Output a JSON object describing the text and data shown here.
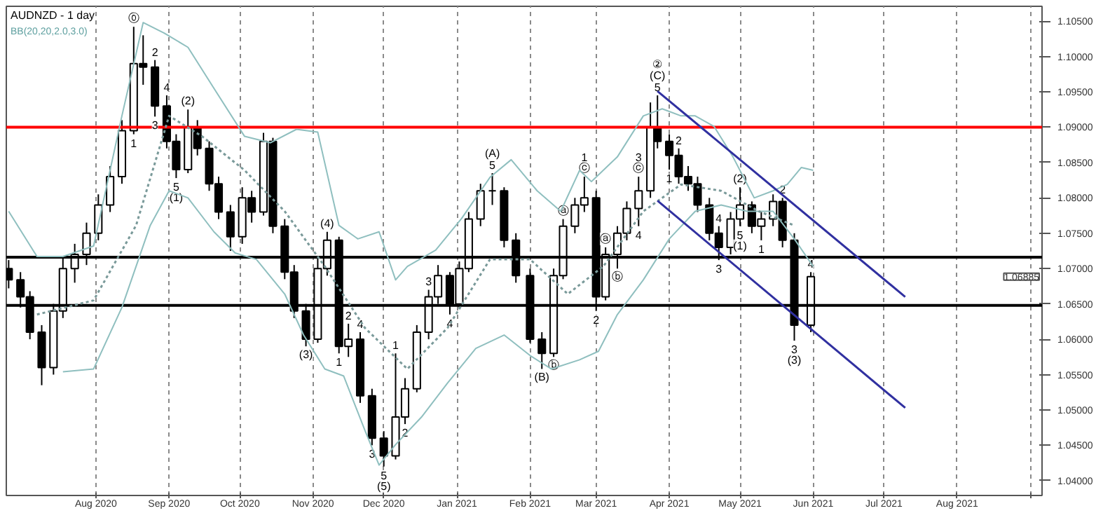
{
  "chart_data": {
    "type": "candlestick",
    "title": "AUDNZD - 1 day",
    "subtitle": "BB(20,20,2.0,3.0)",
    "color": "#000000",
    "x": [
      "2020-06-25",
      "2020-06-30",
      "2020-07-04",
      "2020-07-09",
      "2020-07-14",
      "2020-07-18",
      "2020-07-23",
      "2020-07-28",
      "2020-08-02",
      "2020-08-07",
      "2020-08-12",
      "2020-08-17",
      "2020-08-21",
      "2020-08-26",
      "2020-08-31",
      "2020-09-04",
      "2020-09-09",
      "2020-09-13",
      "2020-09-18",
      "2020-09-22",
      "2020-09-27",
      "2020-10-02",
      "2020-10-06",
      "2020-10-11",
      "2020-10-15",
      "2020-10-20",
      "2020-10-24",
      "2020-10-29",
      "2020-11-03",
      "2020-11-07",
      "2020-11-12",
      "2020-11-16",
      "2020-11-21",
      "2020-11-26",
      "2020-12-01",
      "2020-12-06",
      "2020-12-10",
      "2020-12-15",
      "2020-12-20",
      "2020-12-24",
      "2020-12-29",
      "2021-01-02",
      "2021-01-06",
      "2021-01-11",
      "2021-01-16",
      "2021-01-21",
      "2021-01-26",
      "2021-02-01",
      "2021-02-06",
      "2021-02-11",
      "2021-02-15",
      "2021-02-20",
      "2021-02-24",
      "2021-03-01",
      "2021-03-05",
      "2021-03-10",
      "2021-03-14",
      "2021-03-19",
      "2021-03-24",
      "2021-03-27",
      "2021-04-01",
      "2021-04-05",
      "2021-04-09",
      "2021-04-13",
      "2021-04-18",
      "2021-04-22",
      "2021-04-27",
      "2021-05-01",
      "2021-05-06",
      "2021-05-10",
      "2021-05-15",
      "2021-05-19",
      "2021-05-24",
      "2021-05-31"
    ],
    "ohlc": [
      [
        1.07,
        1.0712,
        1.0672,
        1.0684
      ],
      [
        1.0684,
        1.0695,
        1.0645,
        1.066
      ],
      [
        1.066,
        1.0668,
        1.06,
        1.061
      ],
      [
        1.061,
        1.062,
        1.0535,
        1.056
      ],
      [
        1.056,
        1.065,
        1.055,
        1.064
      ],
      [
        1.064,
        1.0715,
        1.063,
        1.07
      ],
      [
        1.07,
        1.0735,
        1.068,
        1.072
      ],
      [
        1.072,
        1.0765,
        1.0705,
        1.075
      ],
      [
        1.075,
        1.0805,
        1.074,
        1.079
      ],
      [
        1.079,
        1.0845,
        1.078,
        1.083
      ],
      [
        1.083,
        1.091,
        1.082,
        1.0895
      ],
      [
        1.0895,
        1.1042,
        1.089,
        1.099
      ],
      [
        1.099,
        1.103,
        1.096,
        1.0985
      ],
      [
        1.0985,
        1.0995,
        1.0915,
        1.093
      ],
      [
        1.093,
        1.0945,
        1.087,
        1.088
      ],
      [
        1.088,
        1.089,
        1.0828,
        1.084
      ],
      [
        1.084,
        1.0925,
        1.0835,
        1.09
      ],
      [
        1.09,
        1.091,
        1.086,
        1.087
      ],
      [
        1.087,
        1.088,
        1.081,
        1.082
      ],
      [
        1.082,
        1.083,
        1.077,
        1.078
      ],
      [
        1.078,
        1.079,
        1.0725,
        1.0745
      ],
      [
        1.0745,
        1.0815,
        1.0735,
        1.08
      ],
      [
        1.08,
        1.081,
        1.0765,
        1.078
      ],
      [
        1.078,
        1.0892,
        1.0775,
        1.088
      ],
      [
        1.088,
        1.0885,
        1.075,
        1.076
      ],
      [
        1.076,
        1.077,
        1.0685,
        1.0695
      ],
      [
        1.0695,
        1.0705,
        1.063,
        1.064
      ],
      [
        1.064,
        1.065,
        1.059,
        1.06
      ],
      [
        1.06,
        1.0715,
        1.0595,
        1.07
      ],
      [
        1.07,
        1.0752,
        1.069,
        1.074
      ],
      [
        1.074,
        1.0745,
        1.058,
        1.059
      ],
      [
        1.059,
        1.0622,
        1.0575,
        1.06
      ],
      [
        1.06,
        1.061,
        1.051,
        1.052
      ],
      [
        1.052,
        1.053,
        1.045,
        1.046
      ],
      [
        1.046,
        1.047,
        1.042,
        1.0435
      ],
      [
        1.0435,
        1.058,
        1.043,
        1.049
      ],
      [
        1.049,
        1.0545,
        1.048,
        1.053
      ],
      [
        1.053,
        1.062,
        1.0525,
        1.061
      ],
      [
        1.061,
        1.067,
        1.06,
        1.066
      ],
      [
        1.066,
        1.0705,
        1.065,
        1.069
      ],
      [
        1.069,
        1.0695,
        1.0635,
        1.065
      ],
      [
        1.065,
        1.071,
        1.0645,
        1.07
      ],
      [
        1.07,
        1.078,
        1.0695,
        1.077
      ],
      [
        1.077,
        1.082,
        1.076,
        1.081
      ],
      [
        1.081,
        1.0835,
        1.079,
        1.081
      ],
      [
        1.081,
        1.0815,
        1.073,
        1.074
      ],
      [
        1.074,
        1.075,
        1.068,
        1.069
      ],
      [
        1.069,
        1.07,
        1.0595,
        1.06
      ],
      [
        1.06,
        1.061,
        1.0558,
        1.058
      ],
      [
        1.058,
        1.07,
        1.0575,
        1.069
      ],
      [
        1.069,
        1.077,
        1.0685,
        1.076
      ],
      [
        1.076,
        1.08,
        1.075,
        1.079
      ],
      [
        1.079,
        1.083,
        1.078,
        1.08
      ],
      [
        1.08,
        1.081,
        1.064,
        1.066
      ],
      [
        1.066,
        1.073,
        1.0655,
        1.072
      ],
      [
        1.072,
        1.076,
        1.07,
        1.075
      ],
      [
        1.075,
        1.0795,
        1.074,
        1.0785
      ],
      [
        1.0785,
        1.083,
        1.076,
        1.081
      ],
      [
        1.081,
        1.0935,
        1.08,
        1.09
      ],
      [
        1.09,
        1.0945,
        1.087,
        1.088
      ],
      [
        1.088,
        1.089,
        1.084,
        1.086
      ],
      [
        1.086,
        1.087,
        1.082,
        1.083
      ],
      [
        1.083,
        1.0845,
        1.081,
        1.082
      ],
      [
        1.082,
        1.083,
        1.078,
        1.079
      ],
      [
        1.079,
        1.08,
        1.074,
        1.075
      ],
      [
        1.075,
        1.076,
        1.0712,
        1.073
      ],
      [
        1.073,
        1.078,
        1.072,
        1.077
      ],
      [
        1.077,
        1.0815,
        1.076,
        1.079
      ],
      [
        1.079,
        1.0795,
        1.075,
        1.076
      ],
      [
        1.076,
        1.078,
        1.074,
        1.077
      ],
      [
        1.077,
        1.0805,
        1.076,
        1.0795
      ],
      [
        1.0795,
        1.08,
        1.073,
        1.074
      ],
      [
        1.074,
        1.075,
        1.0598,
        1.062
      ],
      [
        1.062,
        1.0695,
        1.061,
        1.06885
      ]
    ],
    "series": [
      {
        "type": "line",
        "color": "#8fbfbf",
        "x": [
          "2020-06-25",
          "2020-07-07",
          "2020-07-18",
          "2020-07-31",
          "2020-08-12",
          "2020-08-21",
          "2020-08-30",
          "2020-09-09",
          "2020-09-20",
          "2020-10-03",
          "2020-10-14",
          "2020-10-25",
          "2020-11-03",
          "2020-11-12",
          "2020-11-20",
          "2020-11-29",
          "2020-12-06",
          "2020-12-11",
          "2020-12-23",
          "2021-01-03",
          "2021-01-15",
          "2021-01-24",
          "2021-02-04",
          "2021-02-14",
          "2021-02-22",
          "2021-02-27",
          "2021-03-10",
          "2021-03-21",
          "2021-03-29",
          "2021-04-06",
          "2021-04-12",
          "2021-04-20",
          "2021-04-28",
          "2021-05-07",
          "2021-05-15",
          "2021-05-21",
          "2021-05-27",
          "2021-06-01"
        ],
        "values": [
          1.0781,
          1.0717,
          1.0717,
          1.0732,
          1.0916,
          1.1048,
          1.1033,
          1.1013,
          1.0955,
          1.0887,
          1.0878,
          1.0897,
          1.0893,
          1.0761,
          1.0742,
          1.0752,
          1.0684,
          1.0703,
          1.0726,
          1.0771,
          1.0829,
          1.0854,
          1.081,
          1.0781,
          1.0839,
          1.0823,
          1.0858,
          1.0916,
          1.0926,
          1.0916,
          1.0916,
          1.0901,
          1.0858,
          1.08,
          1.081,
          1.0819,
          1.0843,
          1.0839
        ]
      },
      {
        "type": "line",
        "color": "#8fbfbf",
        "x": [
          "2020-07-18",
          "2020-07-31",
          "2020-08-12",
          "2020-08-24",
          "2020-09-01",
          "2020-09-09",
          "2020-09-20",
          "2020-09-29",
          "2020-10-08",
          "2020-10-20",
          "2020-10-28",
          "2020-11-06",
          "2020-11-14",
          "2020-11-23",
          "2020-11-29",
          "2020-12-06",
          "2020-12-17",
          "2020-12-28",
          "2021-01-09",
          "2021-01-21",
          "2021-02-01",
          "2021-02-10",
          "2021-02-22",
          "2021-03-02",
          "2021-03-10",
          "2021-03-21",
          "2021-04-01",
          "2021-04-12",
          "2021-04-23",
          "2021-05-04",
          "2021-05-15",
          "2021-05-24",
          "2021-06-01"
        ],
        "values": [
          1.0554,
          1.0558,
          1.0645,
          1.0761,
          1.081,
          1.08,
          1.0752,
          1.0722,
          1.0713,
          1.0664,
          1.0606,
          1.0558,
          1.0548,
          1.0471,
          1.0422,
          1.0451,
          1.049,
          1.0538,
          1.0587,
          1.0606,
          1.0577,
          1.0558,
          1.0571,
          1.0583,
          1.0635,
          1.0684,
          1.0742,
          1.0781,
          1.079,
          1.0781,
          1.0781,
          1.0742,
          1.0703
        ]
      },
      {
        "type": "line",
        "color": "#7a9a9a",
        "line_style": "dotted",
        "x": [
          "2020-07-07",
          "2020-07-31",
          "2020-08-18",
          "2020-09-01",
          "2020-09-15",
          "2020-10-03",
          "2020-10-20",
          "2020-11-06",
          "2020-11-23",
          "2020-12-11",
          "2020-12-28",
          "2021-01-15",
          "2021-02-01",
          "2021-02-17",
          "2021-03-04",
          "2021-03-21",
          "2021-04-06",
          "2021-04-23",
          "2021-05-09",
          "2021-05-24"
        ],
        "values": [
          1.0635,
          1.0655,
          1.0761,
          1.0916,
          1.0887,
          1.0839,
          1.0781,
          1.0703,
          1.0616,
          1.0558,
          1.0616,
          1.0713,
          1.0713,
          1.0664,
          1.0703,
          1.0781,
          1.0819,
          1.081,
          1.0781,
          1.0761
        ]
      },
      {
        "type": "line",
        "color": "#3030a0",
        "x": [
          "2021-03-27",
          "2021-07-10"
        ],
        "values": [
          1.0951,
          1.066
        ]
      },
      {
        "type": "line",
        "color": "#3030a0",
        "x": [
          "2021-03-27",
          "2021-07-10"
        ],
        "values": [
          1.0796,
          1.0503
        ]
      }
    ],
    "ref_lines": [
      {
        "axis": "y",
        "value": 1.09,
        "color": "#ff0000"
      },
      {
        "axis": "y",
        "value": 1.0716,
        "color": "#000000"
      },
      {
        "axis": "y",
        "value": 1.0648,
        "color": "#000000"
      }
    ],
    "xlim": [
      "2020-06-24",
      "2021-09-06"
    ],
    "xticks": [
      {
        "value": "2020-08-01",
        "label": "Aug 2020"
      },
      {
        "value": "2020-09-01",
        "label": "Sep 2020"
      },
      {
        "value": "2020-10-01",
        "label": "Oct 2020"
      },
      {
        "value": "2020-11-01",
        "label": "Nov 2020"
      },
      {
        "value": "2020-12-01",
        "label": "Dec 2020"
      },
      {
        "value": "2021-01-01",
        "label": "Jan 2021"
      },
      {
        "value": "2021-02-01",
        "label": "Feb 2021"
      },
      {
        "value": "2021-03-01",
        "label": "Mar 2021"
      },
      {
        "value": "2021-04-01",
        "label": "Apr 2021"
      },
      {
        "value": "2021-05-01",
        "label": "May 2021"
      },
      {
        "value": "2021-06-01",
        "label": "Jun 2021"
      },
      {
        "value": "2021-07-01",
        "label": "Jul 2021"
      },
      {
        "value": "2021-08-01",
        "label": "Aug 2021"
      },
      {
        "value": "2021-09-01",
        "label": null
      }
    ],
    "ylim": [
      1.0379,
      1.1071
    ],
    "yticks": [
      {
        "value": 1.04,
        "label": "1.04000"
      },
      {
        "value": 1.045,
        "label": "1.04500"
      },
      {
        "value": 1.05,
        "label": "1.05000"
      },
      {
        "value": 1.055,
        "label": "1.05500"
      },
      {
        "value": 1.06,
        "label": "1.06000"
      },
      {
        "value": 1.065,
        "label": "1.06500"
      },
      {
        "value": 1.07,
        "label": "1.07000"
      },
      {
        "value": 1.075,
        "label": "1.07500"
      },
      {
        "value": 1.08,
        "label": "1.08000"
      },
      {
        "value": 1.085,
        "label": "1.08500"
      },
      {
        "value": 1.09,
        "label": "1.09000"
      },
      {
        "value": 1.095,
        "label": "1.09500"
      },
      {
        "value": 1.1,
        "label": "1.10000"
      },
      {
        "value": 1.105,
        "label": "1.10500"
      }
    ],
    "grid": "x",
    "annotations": [
      {
        "text": "⓪",
        "x": "2020-08-17",
        "y": 1.1042
      },
      {
        "text": "2",
        "x": "2020-08-26",
        "y": 1.0995
      },
      {
        "text": "1",
        "x": "2020-08-17",
        "y": 1.089
      },
      {
        "text": "3",
        "x": "2020-08-26",
        "y": 1.0915
      },
      {
        "text": "4",
        "x": "2020-08-31",
        "y": 1.0945
      },
      {
        "text": "5",
        "x": "2020-09-04",
        "y": 1.0828
      },
      {
        "text": "(1)",
        "x": "2020-09-04",
        "y": 1.0828
      },
      {
        "text": "(2)",
        "x": "2020-09-09",
        "y": 1.0925
      },
      {
        "text": "(4)",
        "x": "2020-11-07",
        "y": 1.0752
      },
      {
        "text": "(3)",
        "x": "2020-10-29",
        "y": 1.059
      },
      {
        "text": "1",
        "x": "2020-11-12",
        "y": 1.058
      },
      {
        "text": "2",
        "x": "2020-11-16",
        "y": 1.0622
      },
      {
        "text": "3",
        "x": "2020-11-26",
        "y": 1.045
      },
      {
        "text": "4",
        "x": "2020-11-21",
        "y": 1.061
      },
      {
        "text": "5",
        "x": "2020-12-01",
        "y": 1.042
      },
      {
        "text": "(5)",
        "x": "2020-12-01",
        "y": 1.042
      },
      {
        "text": "1",
        "x": "2020-12-06",
        "y": 1.058
      },
      {
        "text": "2",
        "x": "2020-12-10",
        "y": 1.048
      },
      {
        "text": "3",
        "x": "2020-12-20",
        "y": 1.067
      },
      {
        "text": "4",
        "x": "2020-12-29",
        "y": 1.0635
      },
      {
        "text": "(A)",
        "x": "2021-01-16",
        "y": 1.0835
      },
      {
        "text": "5",
        "x": "2021-01-16",
        "y": 1.0835
      },
      {
        "text": "(B)",
        "x": "2021-02-06",
        "y": 1.0558
      },
      {
        "text": "ⓐ",
        "x": "2021-02-15",
        "y": 1.077
      },
      {
        "text": "ⓑ",
        "x": "2021-02-11",
        "y": 1.0575
      },
      {
        "text": "1",
        "x": "2021-02-24",
        "y": 1.083
      },
      {
        "text": "ⓒ",
        "x": "2021-02-24",
        "y": 1.083
      },
      {
        "text": "ⓐ",
        "x": "2021-03-05",
        "y": 1.073
      },
      {
        "text": "ⓑ",
        "x": "2021-03-10",
        "y": 1.07
      },
      {
        "text": "2",
        "x": "2021-03-01",
        "y": 1.064
      },
      {
        "text": "3",
        "x": "2021-03-19",
        "y": 1.083
      },
      {
        "text": "ⓒ",
        "x": "2021-03-19",
        "y": 1.083
      },
      {
        "text": "4",
        "x": "2021-03-19",
        "y": 1.076
      },
      {
        "text": "②",
        "x": "2021-03-27",
        "y": 1.0945
      },
      {
        "text": "(C)",
        "x": "2021-03-27",
        "y": 1.0945
      },
      {
        "text": "5",
        "x": "2021-03-27",
        "y": 1.0945
      },
      {
        "text": "2",
        "x": "2021-04-05",
        "y": 1.087
      },
      {
        "text": "1",
        "x": "2021-04-01",
        "y": 1.084
      },
      {
        "text": "4",
        "x": "2021-04-22",
        "y": 1.076
      },
      {
        "text": "(2)",
        "x": "2021-05-01",
        "y": 1.0815
      },
      {
        "text": "3",
        "x": "2021-04-22",
        "y": 1.0712
      },
      {
        "text": "5",
        "x": "2021-05-01",
        "y": 1.076
      },
      {
        "text": "(1)",
        "x": "2021-05-01",
        "y": 1.076
      },
      {
        "text": "1",
        "x": "2021-05-10",
        "y": 1.074
      },
      {
        "text": "2",
        "x": "2021-05-19",
        "y": 1.08
      },
      {
        "text": "4",
        "x": "2021-05-31",
        "y": 1.0695
      },
      {
        "text": "3",
        "x": "2021-05-24",
        "y": 1.0598
      },
      {
        "text": "(3)",
        "x": "2021-05-24",
        "y": 1.0598
      },
      "1.06885"
    ]
  }
}
